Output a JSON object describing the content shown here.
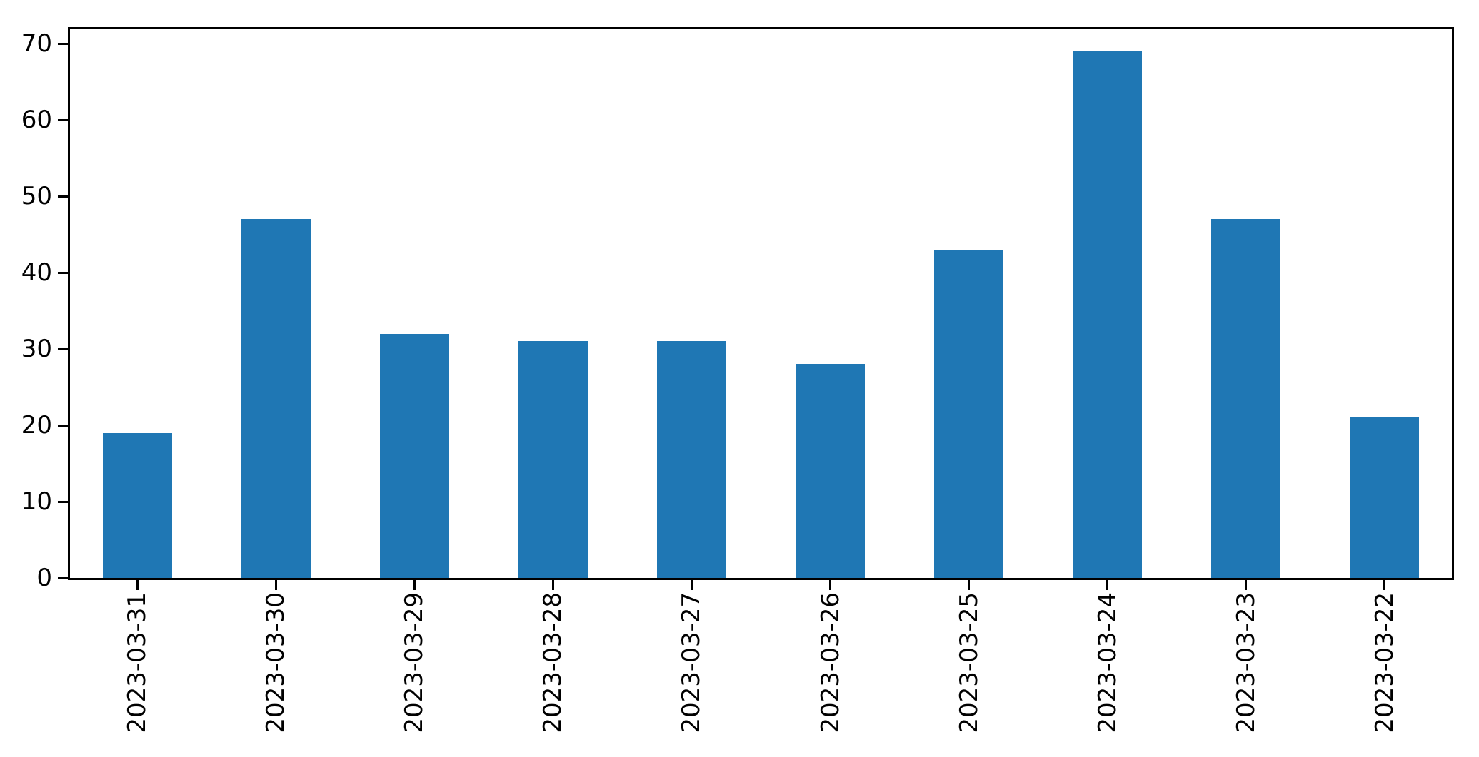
{
  "chart_data": {
    "type": "bar",
    "categories": [
      "2023-03-31",
      "2023-03-30",
      "2023-03-29",
      "2023-03-28",
      "2023-03-27",
      "2023-03-26",
      "2023-03-25",
      "2023-03-24",
      "2023-03-23",
      "2023-03-22"
    ],
    "values": [
      19,
      47,
      32,
      31,
      31,
      28,
      43,
      69,
      47,
      21
    ],
    "title": "",
    "xlabel": "",
    "ylabel": "",
    "ylim": [
      0,
      72
    ],
    "yticks": [
      0,
      10,
      20,
      30,
      40,
      50,
      60,
      70
    ],
    "xtick_rotation": 90,
    "grid": false,
    "legend": null,
    "bar_color": "#1f77b4",
    "axis_color": "#000000",
    "background_color": "#ffffff"
  }
}
